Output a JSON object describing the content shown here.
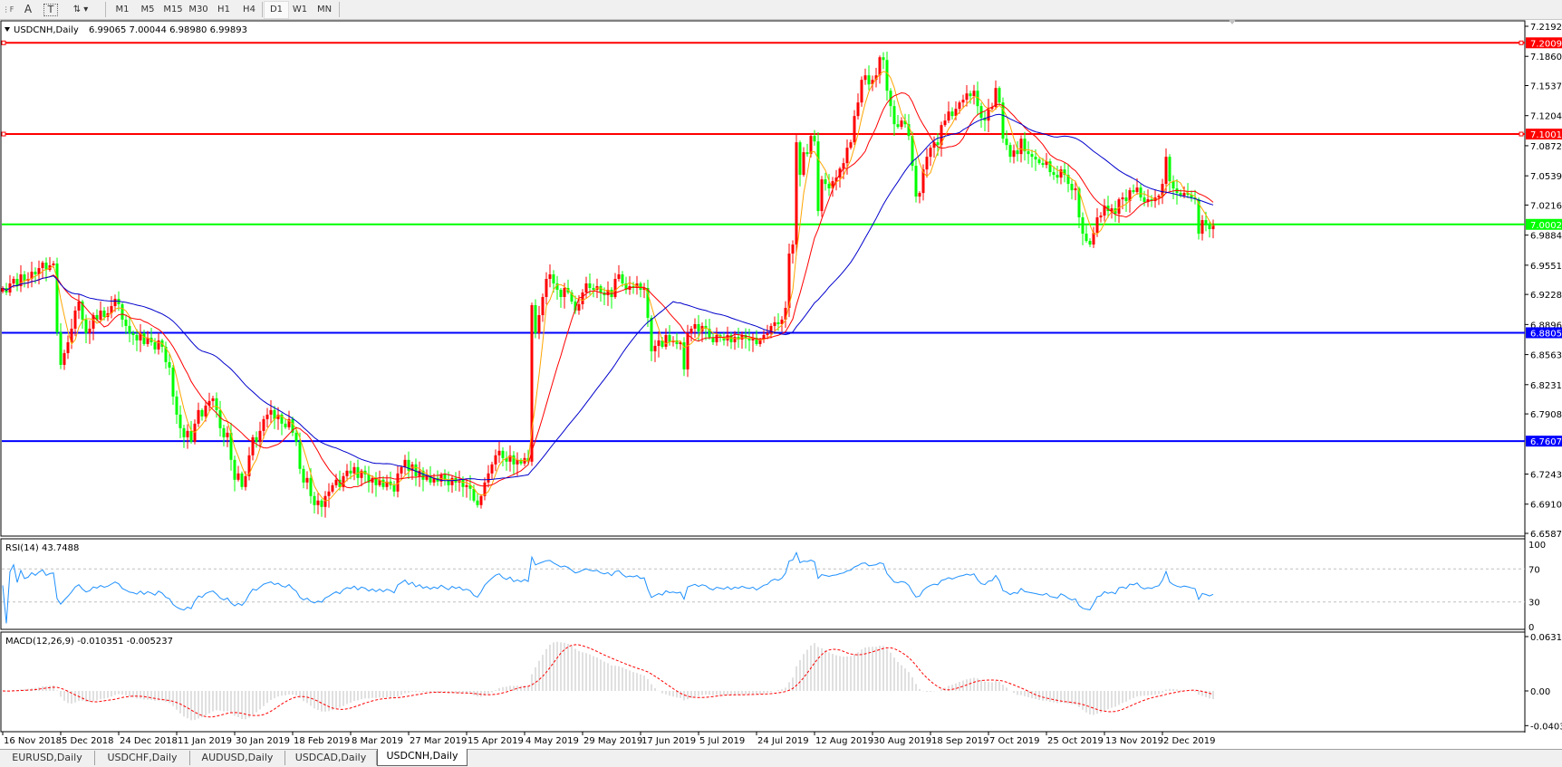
{
  "toolbar": {
    "tools": [
      {
        "icon": "period-separator-icon"
      },
      {
        "icon": "text-tool-icon",
        "label": "A"
      },
      {
        "icon": "text-label-tool-icon",
        "label": "T"
      },
      {
        "icon": "arrows-tool-icon"
      }
    ],
    "timeframes": [
      "M1",
      "M5",
      "M15",
      "M30",
      "H1",
      "H4",
      "D1",
      "W1",
      "MN"
    ],
    "active_timeframe": "D1"
  },
  "chart": {
    "symbol_header": "USDCNH,Daily",
    "ohlc_header": "6.99065 7.00044 6.98980 6.99893",
    "colors": {
      "bull": "#ff0000",
      "bear": "#00ff00",
      "ma_fast": "#ffa500",
      "ma_mid": "#ff0000",
      "ma_slow": "#0000cc"
    },
    "price_ticks": [
      "7.21925",
      "7.18600",
      "7.15370",
      "7.12045",
      "7.08720",
      "7.05395",
      "7.02165",
      "6.98840",
      "6.95515",
      "6.92285",
      "6.88960",
      "6.85635",
      "6.82310",
      "6.79080",
      "6.72430",
      "6.69105",
      "6.65875"
    ],
    "horizontal_lines": [
      {
        "price": "7.20094",
        "color": "#ff0000"
      },
      {
        "price": "7.10011",
        "color": "#ff0000"
      },
      {
        "price": "7.00029",
        "color": "#00ff00"
      },
      {
        "price": "6.88050",
        "color": "#0000ff"
      },
      {
        "price": "6.76071",
        "color": "#0000ff"
      }
    ],
    "date_labels": [
      "16 Nov 2018",
      "5 Dec 2018",
      "24 Dec 2018",
      "11 Jan 2019",
      "30 Jan 2019",
      "18 Feb 2019",
      "8 Mar 2019",
      "27 Mar 2019",
      "15 Apr 2019",
      "4 May 2019",
      "29 May 2019",
      "17 Jun 2019",
      "5 Jul 2019",
      "24 Jul 2019",
      "12 Aug 2019",
      "30 Aug 2019",
      "18 Sep 2019",
      "7 Oct 2019",
      "25 Oct 2019",
      "13 Nov 2019",
      "2 Dec 2019"
    ]
  },
  "chart_data": {
    "type": "candlestick",
    "title": "USDCNH,Daily",
    "ylim": [
      6.65875,
      7.21925
    ],
    "close": [
      6.93,
      6.925,
      6.935,
      6.94,
      6.932,
      6.945,
      6.938,
      6.94,
      6.948,
      6.945,
      6.952,
      6.958,
      6.95,
      6.955,
      6.957,
      6.881,
      6.845,
      6.858,
      6.87,
      6.885,
      6.905,
      6.915,
      6.895,
      6.88,
      6.885,
      6.9,
      6.895,
      6.905,
      6.898,
      6.902,
      6.91,
      6.918,
      6.912,
      6.895,
      6.888,
      6.88,
      6.878,
      6.872,
      6.88,
      6.868,
      6.875,
      6.87,
      6.862,
      6.872,
      6.865,
      6.848,
      6.842,
      6.81,
      6.79,
      6.775,
      6.765,
      6.772,
      6.76,
      6.78,
      6.795,
      6.788,
      6.8,
      6.805,
      6.808,
      6.795,
      6.775,
      6.765,
      6.77,
      6.74,
      6.718,
      6.725,
      6.71,
      6.722,
      6.745,
      6.765,
      6.76,
      6.772,
      6.785,
      6.79,
      6.795,
      6.785,
      6.79,
      6.78,
      6.776,
      6.785,
      6.77,
      6.76,
      6.73,
      6.715,
      6.72,
      6.7,
      6.69,
      6.695,
      6.688,
      6.7,
      6.705,
      6.712,
      6.718,
      6.71,
      6.722,
      6.728,
      6.725,
      6.732,
      6.72,
      6.728,
      6.724,
      6.715,
      6.72,
      6.712,
      6.718,
      6.71,
      6.716,
      6.712,
      6.705,
      6.725,
      6.732,
      6.74,
      6.728,
      6.735,
      6.722,
      6.728,
      6.718,
      6.722,
      6.715,
      6.72,
      6.716,
      6.724,
      6.718,
      6.712,
      6.72,
      6.715,
      6.718,
      6.71,
      6.712,
      6.708,
      6.695,
      6.69,
      6.7,
      6.715,
      6.725,
      6.735,
      6.745,
      6.75,
      6.742,
      6.738,
      6.745,
      6.735,
      6.74,
      6.736,
      6.742,
      6.738,
      6.911,
      6.88,
      6.9,
      6.92,
      6.94,
      6.945,
      6.935,
      6.928,
      6.92,
      6.93,
      6.925,
      6.915,
      6.905,
      6.912,
      6.925,
      6.935,
      6.93,
      6.928,
      6.932,
      6.925,
      6.922,
      6.928,
      6.92,
      6.94,
      6.945,
      6.935,
      6.928,
      6.932,
      6.93,
      6.935,
      6.928,
      6.93,
      6.897,
      6.86,
      6.866,
      6.872,
      6.865,
      6.878,
      6.87,
      6.872,
      6.868,
      6.87,
      6.84,
      6.88,
      6.885,
      6.89,
      6.882,
      6.888,
      6.885,
      6.875,
      6.87,
      6.878,
      6.875,
      6.872,
      6.878,
      6.87,
      6.876,
      6.873,
      6.878,
      6.874,
      6.872,
      6.875,
      6.868,
      6.873,
      6.878,
      6.88,
      6.888,
      6.892,
      6.89,
      6.895,
      6.908,
      6.968,
      6.978,
      7.091,
      7.055,
      7.08,
      7.078,
      7.098,
      7.092,
      7.015,
      7.05,
      7.045,
      7.04,
      7.048,
      7.052,
      7.062,
      7.068,
      7.085,
      7.091,
      7.12,
      7.135,
      7.16,
      7.165,
      7.155,
      7.16,
      7.165,
      7.185,
      7.182,
      7.148,
      7.131,
      7.111,
      7.108,
      7.115,
      7.111,
      7.098,
      7.065,
      7.031,
      7.035,
      7.061,
      7.075,
      7.085,
      7.091,
      7.088,
      7.11,
      7.115,
      7.125,
      7.12,
      7.128,
      7.135,
      7.138,
      7.145,
      7.142,
      7.148,
      7.131,
      7.118,
      7.115,
      7.128,
      7.13,
      7.151,
      7.135,
      7.095,
      7.088,
      7.075,
      7.082,
      7.078,
      7.095,
      7.081,
      7.078,
      7.075,
      7.072,
      7.068,
      7.066,
      7.07,
      7.058,
      7.055,
      7.052,
      7.061,
      7.055,
      7.045,
      7.038,
      7.04,
      7.008,
      6.99,
      6.982,
      6.978,
      6.991,
      7.008,
      7.01,
      7.021,
      7.015,
      7.018,
      7.012,
      7.028,
      7.03,
      7.026,
      7.038,
      7.036,
      7.041,
      7.03,
      7.025,
      7.028,
      7.026,
      7.03,
      7.032,
      7.045,
      7.075,
      7.048,
      7.04,
      7.035,
      7.032,
      7.035,
      7.033,
      7.03,
      7.028,
      6.99,
      7.005,
      7.001,
      6.995,
      6.999
    ]
  },
  "rsi": {
    "header": "RSI(14) 43.7488",
    "levels": [
      "100",
      "70",
      "30",
      "0"
    ],
    "color": "#1e90ff"
  },
  "macd": {
    "header": "MACD(12,26,9) -0.010351 -0.005237",
    "ticks": [
      "0.063184",
      "0.00",
      "-0.040355"
    ],
    "hist_color": "#c0c0c0",
    "signal_color": "#ff0000"
  },
  "tabs": [
    {
      "label": "EURUSD,Daily",
      "active": false
    },
    {
      "label": "USDCHF,Daily",
      "active": false
    },
    {
      "label": "AUDUSD,Daily",
      "active": false
    },
    {
      "label": "USDCAD,Daily",
      "active": false
    },
    {
      "label": "USDCNH,Daily",
      "active": true
    }
  ]
}
